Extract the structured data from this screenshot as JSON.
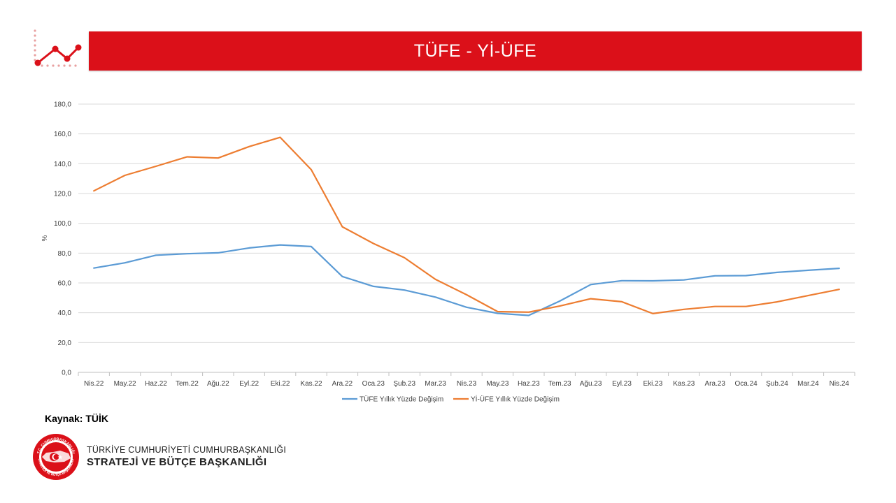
{
  "header": {
    "title": "TÜFE - Yİ-ÜFE",
    "accent_color": "#db1019"
  },
  "chart_data": {
    "type": "line",
    "title": "",
    "xlabel": "",
    "ylabel": "%",
    "ylim": [
      0,
      180
    ],
    "yticks": [
      "0,0",
      "20,0",
      "40,0",
      "60,0",
      "80,0",
      "100,0",
      "120,0",
      "140,0",
      "160,0",
      "180,0"
    ],
    "grid": true,
    "legend_position": "bottom",
    "categories": [
      "Nis.22",
      "May.22",
      "Haz.22",
      "Tem.22",
      "Ağu.22",
      "Eyl.22",
      "Eki.22",
      "Kas.22",
      "Ara.22",
      "Oca.23",
      "Şub.23",
      "Mar.23",
      "Nis.23",
      "May.23",
      "Haz.23",
      "Tem.23",
      "Ağu.23",
      "Eyl.23",
      "Eki.23",
      "Kas.23",
      "Ara.23",
      "Oca.24",
      "Şub.24",
      "Mar.24",
      "Nis.24"
    ],
    "series": [
      {
        "name": "TÜFE Yıllık Yüzde Değişim",
        "color": "#5b9bd5",
        "values": [
          70.0,
          73.5,
          78.6,
          79.6,
          80.2,
          83.5,
          85.5,
          84.4,
          64.3,
          57.7,
          55.2,
          50.5,
          43.7,
          39.6,
          38.2,
          47.8,
          58.9,
          61.5,
          61.4,
          62.0,
          64.8,
          64.9,
          67.1,
          68.5,
          69.8
        ]
      },
      {
        "name": "Yİ-ÜFE Yıllık Yüzde Değişim",
        "color": "#ed7d31",
        "values": [
          121.8,
          132.2,
          138.3,
          144.6,
          143.8,
          151.5,
          157.7,
          136.0,
          97.7,
          86.5,
          76.9,
          62.4,
          52.1,
          40.8,
          40.4,
          44.5,
          49.4,
          47.4,
          39.4,
          42.3,
          44.2,
          44.2,
          47.3,
          51.5,
          55.7
        ]
      }
    ]
  },
  "footer": {
    "source": "Kaynak: TÜİK",
    "org_line1": "TÜRKİYE CUMHURİYETİ CUMHURBAŞKANLIĞI",
    "org_line2": "STRATEJİ VE BÜTÇE BAŞKANLIĞI",
    "seal_text_top": "T.C. CUMHURBAŞKANLIĞI",
    "seal_text_bottom": "STRATEJİ VE BÜTÇE BAŞKANLIĞI"
  }
}
